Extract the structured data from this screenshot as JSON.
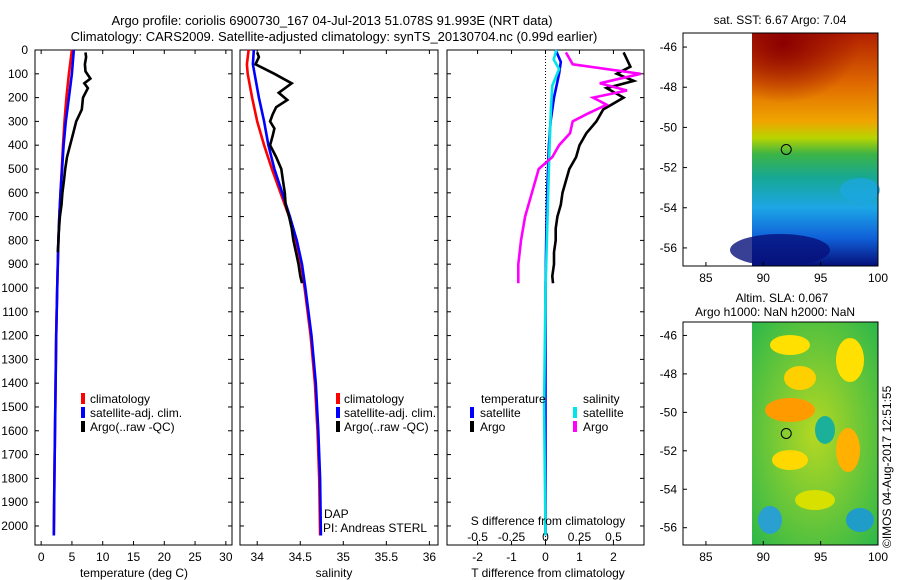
{
  "title_line1": "Argo profile: coriolis 6900730_167 04-Jul-2013 51.078S 91.993E (NRT data)",
  "title_line2": "Climatology: CARS2009. Satellite-adjusted climatology: synTS_20130704.nc (0.99d earlier)",
  "timestamp": "©IMOS 04-Aug-2017 12:51:55",
  "colors": {
    "clim": "#ff0000",
    "sat": "#0000ff",
    "argo": "#000000",
    "sat_s": "#00e5e5",
    "argo_s": "#ff00ff"
  },
  "depth_ticks": [
    "0",
    "100",
    "200",
    "300",
    "400",
    "500",
    "600",
    "700",
    "800",
    "900",
    "1000",
    "1100",
    "1200",
    "1300",
    "1400",
    "1500",
    "1600",
    "1700",
    "1800",
    "1900",
    "2000"
  ],
  "chart_data": [
    {
      "type": "line",
      "name": "temperature",
      "xlabel": "temperature (deg C)",
      "ylabel": "depth",
      "xlim": [
        -1,
        31
      ],
      "ylim": [
        2080,
        0
      ],
      "xticks": [
        "0",
        "5",
        "10",
        "15",
        "20",
        "25",
        "30"
      ],
      "legend": [
        "climatology",
        "satellite-adj. clim.",
        "Argo(..raw -QC)"
      ],
      "series": [
        {
          "name": "climatology",
          "color_key": "clim",
          "depth": [
            0,
            100,
            200,
            300,
            400,
            500,
            600,
            700,
            800,
            900,
            1000,
            1200,
            1500,
            1800,
            2040
          ],
          "values": [
            5.0,
            4.5,
            4.1,
            3.8,
            3.55,
            3.35,
            3.15,
            2.95,
            2.8,
            2.7,
            2.6,
            2.45,
            2.3,
            2.15,
            2.05
          ]
        },
        {
          "name": "satellite-adj. clim.",
          "color_key": "sat",
          "depth": [
            0,
            100,
            200,
            300,
            400,
            500,
            600,
            700,
            800,
            900,
            1000,
            1200,
            1500,
            1800,
            2040
          ],
          "values": [
            5.3,
            5.0,
            4.5,
            4.0,
            3.65,
            3.4,
            3.15,
            2.95,
            2.8,
            2.7,
            2.6,
            2.45,
            2.3,
            2.15,
            2.05
          ]
        },
        {
          "name": "Argo(..raw -QC)",
          "color_key": "argo",
          "depth": [
            10,
            30,
            60,
            90,
            120,
            140,
            160,
            200,
            250,
            300,
            350,
            400,
            450,
            500,
            550,
            600,
            650,
            700,
            750,
            800,
            850
          ],
          "values": [
            7.2,
            7.3,
            7.1,
            7.2,
            8.0,
            7.0,
            7.6,
            6.8,
            6.6,
            5.7,
            5.2,
            4.7,
            4.2,
            3.9,
            3.7,
            3.45,
            3.3,
            3.05,
            2.9,
            2.8,
            2.7
          ]
        }
      ]
    },
    {
      "type": "line",
      "name": "salinity",
      "xlabel": "salinity",
      "ylabel": "depth",
      "xlim": [
        33.8,
        36.1
      ],
      "ylim": [
        2080,
        0
      ],
      "xticks": [
        "34",
        "34.5",
        "35",
        "35.5",
        "36"
      ],
      "legend": [
        "climatology",
        "satellite-adj. clim.",
        "Argo(..raw -QC)"
      ],
      "annotations": [
        "DAP",
        "PI: Andreas STERL"
      ],
      "series": [
        {
          "name": "climatology",
          "color_key": "clim",
          "depth": [
            0,
            60,
            100,
            200,
            300,
            400,
            500,
            600,
            700,
            800,
            900,
            1000,
            1200,
            1400,
            1600,
            1800,
            2040
          ],
          "values": [
            33.9,
            33.88,
            33.89,
            33.94,
            34.0,
            34.08,
            34.17,
            34.27,
            34.37,
            34.45,
            34.51,
            34.55,
            34.62,
            34.67,
            34.7,
            34.72,
            34.73
          ]
        },
        {
          "name": "satellite-adj. clim.",
          "color_key": "sat",
          "depth": [
            0,
            60,
            100,
            200,
            300,
            400,
            500,
            600,
            700,
            800,
            900,
            1000,
            1200,
            1400,
            1600,
            1800,
            2040
          ],
          "values": [
            33.96,
            33.95,
            33.97,
            34.02,
            34.08,
            34.13,
            34.2,
            34.29,
            34.38,
            34.46,
            34.52,
            34.56,
            34.63,
            34.68,
            34.71,
            34.73,
            34.74
          ]
        },
        {
          "name": "Argo(..raw -QC)",
          "color_key": "argo",
          "depth": [
            10,
            30,
            60,
            100,
            140,
            180,
            210,
            240,
            270,
            300,
            330,
            360,
            400,
            450,
            500,
            550,
            600,
            650,
            700,
            750,
            800,
            850,
            900,
            950,
            980
          ],
          "values": [
            34.0,
            34.02,
            33.98,
            34.2,
            34.4,
            34.25,
            34.35,
            34.22,
            34.18,
            34.15,
            34.2,
            34.18,
            34.15,
            34.22,
            34.28,
            34.3,
            34.32,
            34.33,
            34.37,
            34.4,
            34.42,
            34.45,
            34.48,
            34.5,
            34.52
          ]
        }
      ]
    },
    {
      "type": "line",
      "name": "difference from climatology",
      "xlabel": "T difference from climatology",
      "xlabel_top": "S difference from climatology",
      "xlim": [
        -2.9,
        2.9
      ],
      "ylim": [
        2080,
        0
      ],
      "xticks": [
        "-2",
        "-1",
        "0",
        "1",
        "2"
      ],
      "xticks_top": [
        "-0.5",
        "-0.25",
        "0",
        "0.25",
        "0.5"
      ],
      "legend": {
        "temperature_header": "temperature",
        "salinity_header": "salinity",
        "items": [
          "satellite",
          "Argo",
          "satellite",
          "Argo"
        ]
      },
      "series": [
        {
          "name": "T satellite",
          "color_key": "sat",
          "depth": [
            0,
            50,
            100,
            200,
            300,
            400,
            600,
            800,
            1000,
            1500,
            2040
          ],
          "values": [
            0.3,
            0.45,
            0.4,
            0.25,
            0.15,
            0.1,
            0.05,
            0.02,
            0.0,
            0.0,
            0.0
          ]
        },
        {
          "name": "T Argo",
          "color_key": "argo",
          "depth": [
            10,
            40,
            70,
            100,
            130,
            160,
            200,
            250,
            300,
            350,
            400,
            450,
            500,
            550,
            600,
            650,
            700,
            750,
            800,
            850,
            900,
            950,
            980
          ],
          "values": [
            2.3,
            2.4,
            2.5,
            2.1,
            2.6,
            1.8,
            2.3,
            1.7,
            1.5,
            1.2,
            1.0,
            0.9,
            0.7,
            0.6,
            0.5,
            0.45,
            0.35,
            0.3,
            0.3,
            0.25,
            0.25,
            0.2,
            0.22
          ]
        },
        {
          "name": "S satellite",
          "color_key": "sat_s",
          "depth": [
            0,
            40,
            80,
            150,
            250,
            400,
            600,
            800,
            1000,
            1500,
            2040
          ],
          "values": [
            0.08,
            0.06,
            0.1,
            0.05,
            0.04,
            0.03,
            0.02,
            0.01,
            0.0,
            -0.01,
            0.0
          ]
        },
        {
          "name": "S Argo",
          "color_key": "argo_s",
          "depth": [
            10,
            60,
            100,
            140,
            170,
            200,
            230,
            270,
            300,
            350,
            400,
            450,
            500,
            600,
            700,
            800,
            900,
            980
          ],
          "values": [
            0.15,
            0.2,
            0.7,
            0.4,
            0.6,
            0.35,
            0.45,
            0.3,
            0.2,
            0.18,
            0.1,
            0.05,
            -0.05,
            -0.1,
            -0.15,
            -0.18,
            -0.2,
            -0.2
          ]
        }
      ]
    },
    {
      "type": "heatmap",
      "name": "sat SST map",
      "title": "sat. SST: 6.67 Argo: 7.04",
      "xticks": [
        "85",
        "90",
        "95",
        "100"
      ],
      "yticks": [
        "-46",
        "-48",
        "-50",
        "-52",
        "-54",
        "-56"
      ],
      "marker": [
        92.0,
        -51.1
      ]
    },
    {
      "type": "heatmap",
      "name": "altimetry SLA map",
      "title_line1": "Altim. SLA: 0.067",
      "title_line2": "Argo h1000: NaN h2000: NaN",
      "xticks": [
        "85",
        "90",
        "95",
        "100"
      ],
      "yticks": [
        "-46",
        "-48",
        "-50",
        "-52",
        "-54",
        "-56"
      ],
      "marker": [
        92.0,
        -51.1
      ]
    }
  ]
}
